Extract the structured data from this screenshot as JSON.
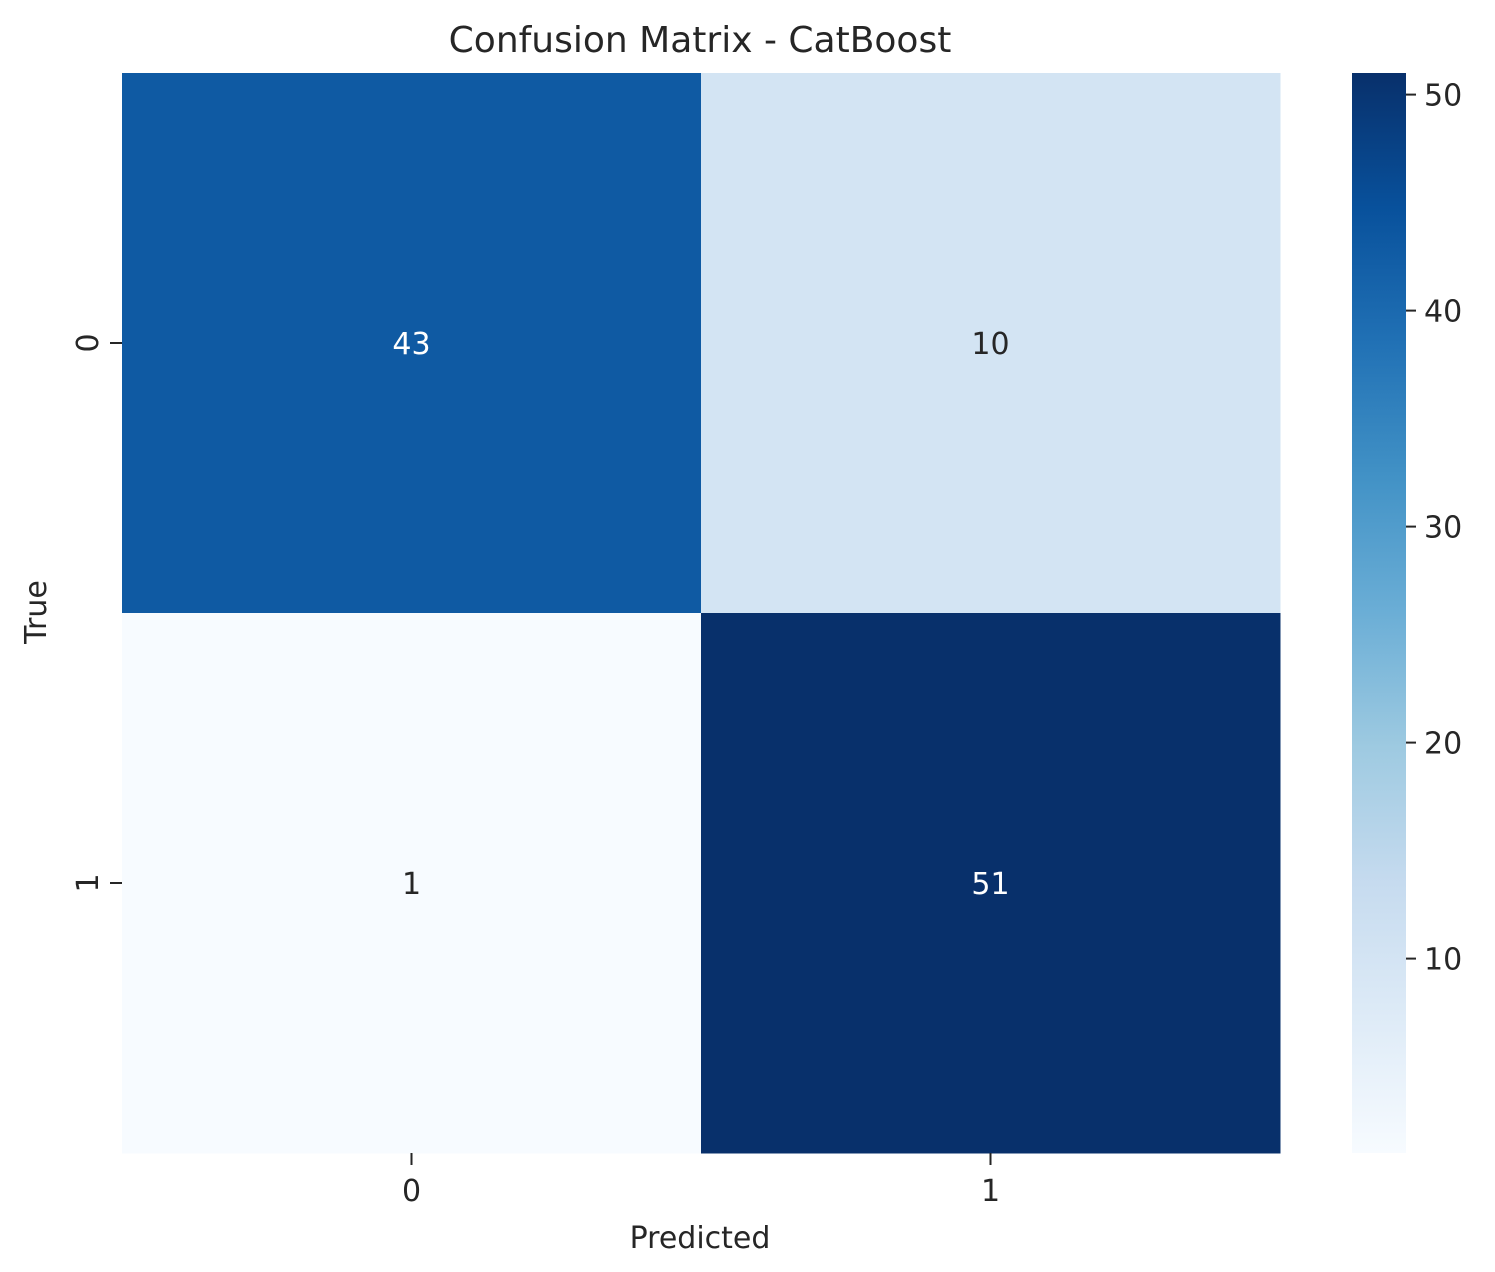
{
  "chart_data": {
    "type": "heatmap",
    "title": "Confusion Matrix - CatBoost",
    "xlabel": "Predicted",
    "ylabel": "True",
    "x_categories": [
      "0",
      "1"
    ],
    "y_categories": [
      "0",
      "1"
    ],
    "values": [
      [
        43,
        10
      ],
      [
        1,
        51
      ]
    ],
    "colormap": "Blues",
    "colorbar": {
      "min": 1,
      "max": 51,
      "ticks": [
        10,
        20,
        30,
        40,
        50
      ],
      "tick_labels": [
        "10",
        "20",
        "30",
        "40",
        "50"
      ]
    },
    "annotation_colors": {
      "on_dark": "#ffffff",
      "on_light": "#262626"
    },
    "grid": false
  }
}
